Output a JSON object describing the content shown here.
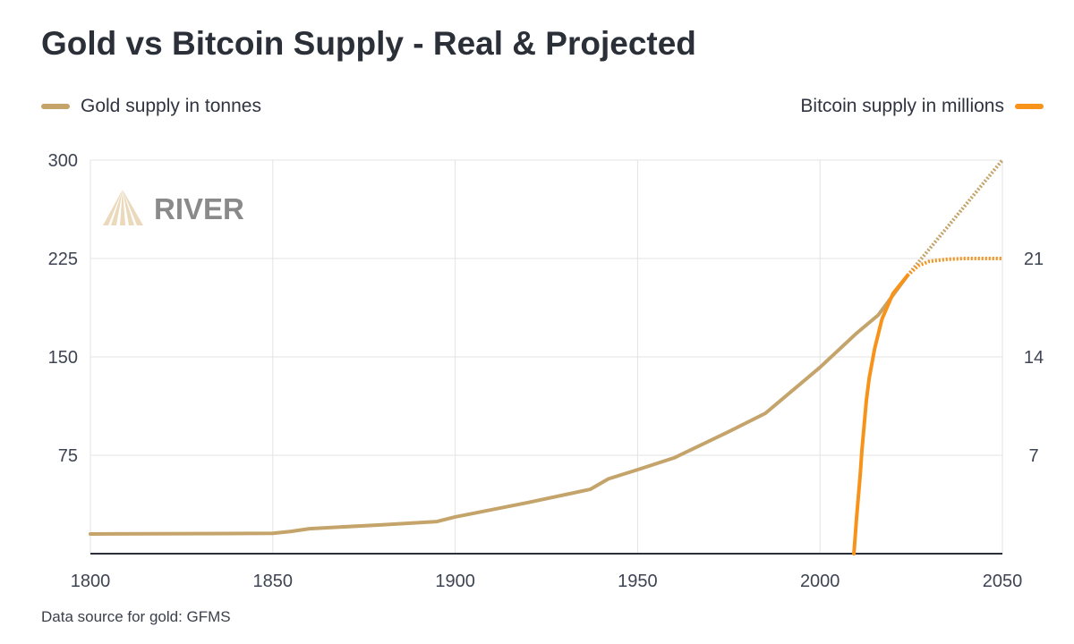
{
  "chart_data": {
    "type": "line",
    "title": "Gold vs Bitcoin Supply - Real & Projected",
    "source": "Data source for gold: GFMS",
    "watermark": "RIVER",
    "xlim": [
      1800,
      2050
    ],
    "x_ticks": [
      "1800",
      "1850",
      "1900",
      "1950",
      "2000",
      "2050"
    ],
    "y_left": {
      "lim": [
        0,
        300
      ],
      "ticks": [
        "75",
        "150",
        "225",
        "300"
      ]
    },
    "y_right": {
      "lim": [
        0,
        28
      ],
      "ticks": [
        "7",
        "14",
        "21"
      ]
    },
    "grid": true,
    "legend": {
      "left": "Gold supply in tonnes",
      "right": "Bitcoin supply in millions"
    },
    "series": [
      {
        "name": "Gold supply in tonnes",
        "axis": "left",
        "color": "#c4a46a",
        "x": [
          1800,
          1850,
          1855,
          1860,
          1880,
          1895,
          1900,
          1920,
          1937,
          1942,
          1950,
          1960,
          1975,
          1985,
          2000,
          2010,
          2016,
          2024
        ],
        "y": [
          15,
          15.5,
          17,
          19,
          22,
          24.5,
          28,
          39,
          49,
          57,
          64,
          73,
          93,
          107,
          142,
          168,
          182,
          212
        ],
        "projected": {
          "x": [
            2024,
            2050
          ],
          "y": [
            212,
            300
          ]
        }
      },
      {
        "name": "Bitcoin supply in millions",
        "axis": "right",
        "color": "#f7931a",
        "x": [
          2009.3,
          2010,
          2011,
          2011.5,
          2012.7,
          2013.5,
          2015,
          2017,
          2020,
          2024
        ],
        "y": [
          0,
          2.5,
          5.5,
          7.4,
          10.9,
          12.5,
          14.6,
          16.7,
          18.5,
          19.8
        ],
        "projected": {
          "x": [
            2024,
            2027,
            2030,
            2035,
            2040,
            2050
          ],
          "y": [
            19.8,
            20.5,
            20.8,
            20.95,
            21,
            21
          ]
        }
      }
    ]
  }
}
